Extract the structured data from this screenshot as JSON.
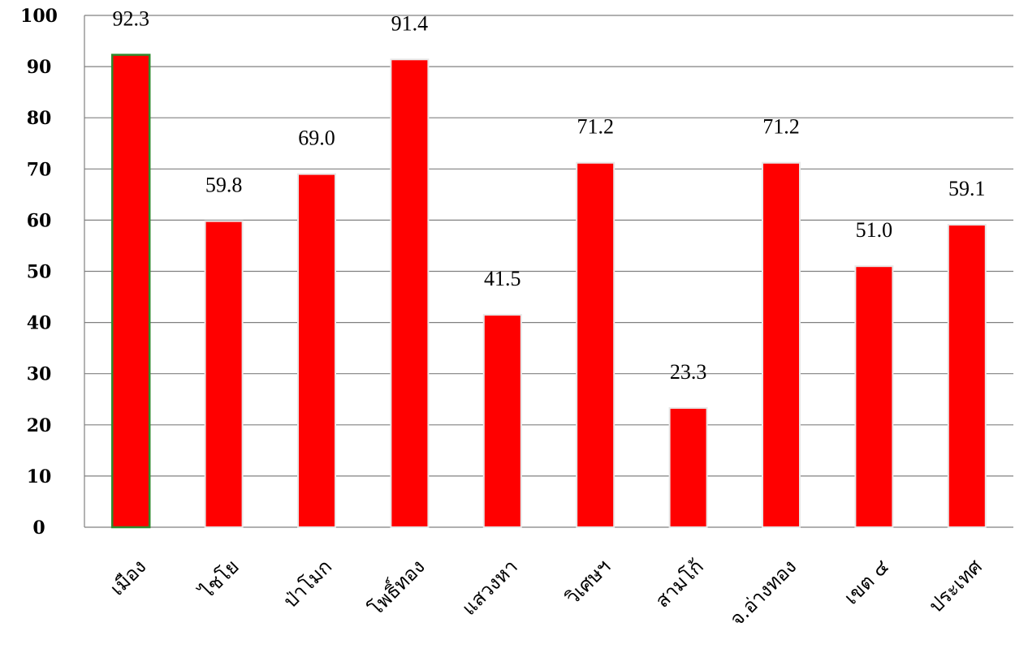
{
  "chart_data": {
    "type": "bar",
    "categories": [
      "เมือง",
      "ไชโย",
      "ป่าโมก",
      "โพธิ์ทอง",
      "แสวงหา",
      "วิเศษฯ",
      "สามโก้",
      "จ.อ่างทอง",
      "เขต ๔",
      "ประเทศ"
    ],
    "values": [
      92.3,
      59.8,
      69.0,
      91.4,
      41.5,
      71.2,
      23.3,
      71.2,
      51.0,
      59.1
    ],
    "data_labels": [
      "92.3",
      "59.8",
      "69.0",
      "91.4",
      "41.5",
      "71.2",
      "23.3",
      "71.2",
      "51.0",
      "59.1"
    ],
    "ylim": [
      0,
      100
    ],
    "yticks": [
      0,
      10,
      20,
      30,
      40,
      50,
      60,
      70,
      80,
      90,
      100
    ],
    "grid": true,
    "bar_color": "#ff0000",
    "highlight_index": 0,
    "highlight_border_color": "#2e8b2e"
  }
}
